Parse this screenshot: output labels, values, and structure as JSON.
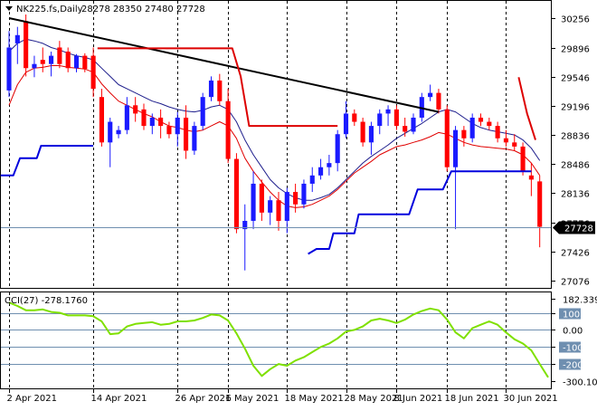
{
  "header": {
    "symbol_label": "NK225.fs,Daily",
    "ohlc_label": "28278 28350 27480 27728"
  },
  "indicator_header": {
    "label": "CCI(27) -278.1760"
  },
  "price_axis": {
    "ticks": [
      "30256",
      "29896",
      "29546",
      "29196",
      "28836",
      "28486",
      "28136",
      "27776",
      "27426",
      "27076"
    ],
    "last_price_label": "27728"
  },
  "cci_axis": {
    "ticks": [
      "182.339",
      "100",
      "0.00",
      "-100",
      "-200",
      "-300.105"
    ]
  },
  "date_axis": {
    "labels": [
      "2 Apr 2021",
      "14 Apr 2021",
      "26 Apr 2021",
      "6 May 2021",
      "18 May 2021",
      "28 May 2021",
      "8 Jun 2021",
      "18 Jun 2021",
      "30 Jun 2021"
    ]
  },
  "colors": {
    "bull": "#1a1aff",
    "bear": "#ff0000",
    "trendline": "#000000",
    "ma_fast": "#e00000",
    "ma_slow": "#1e1e8c",
    "support": "#0000dd",
    "resistance": "#dd0000",
    "cci": "#7fe000",
    "cci_levels": "#6f8fb0",
    "last_price_line": "#6f8fb0"
  },
  "chart_data": [
    {
      "type": "candlestick",
      "ylim": [
        27076,
        30256
      ],
      "candles": [
        {
          "date": "2 Apr 2021",
          "o": 29380,
          "h": 30100,
          "l": 29300,
          "c": 29900
        },
        {
          "date": "",
          "o": 29950,
          "h": 30150,
          "l": 29700,
          "c": 30050
        },
        {
          "date": "",
          "o": 30220,
          "h": 30300,
          "l": 29550,
          "c": 29650
        },
        {
          "date": "",
          "o": 29650,
          "h": 29800,
          "l": 29540,
          "c": 29700
        },
        {
          "date": "",
          "o": 29750,
          "h": 29900,
          "l": 29600,
          "c": 29700
        },
        {
          "date": "",
          "o": 29700,
          "h": 29850,
          "l": 29550,
          "c": 29800
        },
        {
          "date": "",
          "o": 29900,
          "h": 29980,
          "l": 29650,
          "c": 29700
        },
        {
          "date": "",
          "o": 29850,
          "h": 29900,
          "l": 29600,
          "c": 29650
        },
        {
          "date": "",
          "o": 29650,
          "h": 29820,
          "l": 29600,
          "c": 29800
        },
        {
          "date": "",
          "o": 29800,
          "h": 29830,
          "l": 29600,
          "c": 29640
        },
        {
          "date": "14 Apr 2021",
          "o": 29800,
          "h": 29900,
          "l": 29300,
          "c": 29400
        },
        {
          "date": "",
          "o": 29300,
          "h": 29400,
          "l": 28700,
          "c": 28750
        },
        {
          "date": "",
          "o": 28750,
          "h": 29050,
          "l": 28450,
          "c": 29000
        },
        {
          "date": "",
          "o": 28850,
          "h": 28950,
          "l": 28800,
          "c": 28900
        },
        {
          "date": "",
          "o": 28900,
          "h": 29300,
          "l": 28850,
          "c": 29200
        },
        {
          "date": "",
          "o": 29200,
          "h": 29300,
          "l": 29000,
          "c": 29100
        },
        {
          "date": "",
          "o": 29150,
          "h": 29220,
          "l": 28900,
          "c": 28950
        },
        {
          "date": "",
          "o": 28950,
          "h": 29100,
          "l": 28850,
          "c": 29050
        },
        {
          "date": "",
          "o": 29050,
          "h": 29150,
          "l": 28800,
          "c": 28950
        },
        {
          "date": "",
          "o": 28950,
          "h": 29000,
          "l": 28800,
          "c": 28850
        },
        {
          "date": "26 Apr 2021",
          "o": 28850,
          "h": 29120,
          "l": 28700,
          "c": 29050
        },
        {
          "date": "",
          "o": 29050,
          "h": 29200,
          "l": 28550,
          "c": 28650
        },
        {
          "date": "",
          "o": 28650,
          "h": 29000,
          "l": 28600,
          "c": 28950
        },
        {
          "date": "",
          "o": 28950,
          "h": 29350,
          "l": 28900,
          "c": 29300
        },
        {
          "date": "",
          "o": 29300,
          "h": 29550,
          "l": 29250,
          "c": 29500
        },
        {
          "date": "",
          "o": 29500,
          "h": 29580,
          "l": 29200,
          "c": 29250
        },
        {
          "date": "6 May 2021",
          "o": 29250,
          "h": 29400,
          "l": 28500,
          "c": 28550
        },
        {
          "date": "",
          "o": 28550,
          "h": 28620,
          "l": 27650,
          "c": 27700
        },
        {
          "date": "",
          "o": 27700,
          "h": 28000,
          "l": 27200,
          "c": 27800
        },
        {
          "date": "",
          "o": 27800,
          "h": 28400,
          "l": 27700,
          "c": 28250
        },
        {
          "date": "",
          "o": 28250,
          "h": 28300,
          "l": 27800,
          "c": 27900
        },
        {
          "date": "",
          "o": 27900,
          "h": 28100,
          "l": 27750,
          "c": 28050
        },
        {
          "date": "",
          "o": 28050,
          "h": 28150,
          "l": 27680,
          "c": 27800
        },
        {
          "date": "18 May 2021",
          "o": 27800,
          "h": 28200,
          "l": 27650,
          "c": 28150
        },
        {
          "date": "",
          "o": 28150,
          "h": 28250,
          "l": 27900,
          "c": 28000
        },
        {
          "date": "",
          "o": 28000,
          "h": 28300,
          "l": 27950,
          "c": 28250
        },
        {
          "date": "",
          "o": 28250,
          "h": 28450,
          "l": 28150,
          "c": 28350
        },
        {
          "date": "",
          "o": 28350,
          "h": 28550,
          "l": 28300,
          "c": 28450
        },
        {
          "date": "",
          "o": 28450,
          "h": 28600,
          "l": 28350,
          "c": 28500
        },
        {
          "date": "",
          "o": 28500,
          "h": 28900,
          "l": 28400,
          "c": 28850
        },
        {
          "date": "28 May 2021",
          "o": 28850,
          "h": 29250,
          "l": 28800,
          "c": 29100
        },
        {
          "date": "",
          "o": 29100,
          "h": 29150,
          "l": 28950,
          "c": 29000
        },
        {
          "date": "",
          "o": 29000,
          "h": 29050,
          "l": 28700,
          "c": 28750
        },
        {
          "date": "",
          "o": 28750,
          "h": 29000,
          "l": 28600,
          "c": 28950
        },
        {
          "date": "",
          "o": 28950,
          "h": 29150,
          "l": 28850,
          "c": 29100
        },
        {
          "date": "",
          "o": 29100,
          "h": 29200,
          "l": 28950,
          "c": 29150
        },
        {
          "date": "8 Jun 2021",
          "o": 29150,
          "h": 29200,
          "l": 28900,
          "c": 28950
        },
        {
          "date": "",
          "o": 28950,
          "h": 29050,
          "l": 28820,
          "c": 28880
        },
        {
          "date": "",
          "o": 28880,
          "h": 29100,
          "l": 28850,
          "c": 29050
        },
        {
          "date": "",
          "o": 29050,
          "h": 29350,
          "l": 29000,
          "c": 29300
        },
        {
          "date": "",
          "o": 29300,
          "h": 29450,
          "l": 29250,
          "c": 29350
        },
        {
          "date": "",
          "o": 29350,
          "h": 29400,
          "l": 29100,
          "c": 29150
        },
        {
          "date": "18 Jun 2021",
          "o": 29150,
          "h": 29200,
          "l": 28400,
          "c": 28450
        },
        {
          "date": "",
          "o": 28450,
          "h": 28950,
          "l": 27700,
          "c": 28900
        },
        {
          "date": "",
          "o": 28900,
          "h": 28950,
          "l": 28700,
          "c": 28800
        },
        {
          "date": "",
          "o": 28800,
          "h": 29100,
          "l": 28750,
          "c": 29050
        },
        {
          "date": "",
          "o": 29050,
          "h": 29100,
          "l": 28950,
          "c": 29000
        },
        {
          "date": "",
          "o": 29000,
          "h": 29050,
          "l": 28900,
          "c": 28950
        },
        {
          "date": "",
          "o": 28950,
          "h": 29000,
          "l": 28750,
          "c": 28800
        },
        {
          "date": "30 Jun 2021",
          "o": 28800,
          "h": 28900,
          "l": 28700,
          "c": 28750
        },
        {
          "date": "",
          "o": 28750,
          "h": 28850,
          "l": 28650,
          "c": 28700
        },
        {
          "date": "",
          "o": 28700,
          "h": 28750,
          "l": 28350,
          "c": 28400
        },
        {
          "date": "",
          "o": 28350,
          "h": 28500,
          "l": 28100,
          "c": 28300
        },
        {
          "date": "",
          "o": 28278,
          "h": 28350,
          "l": 27480,
          "c": 27728
        }
      ],
      "trendline": [
        [
          0,
          30256
        ],
        [
          51,
          29120
        ]
      ],
      "ma_fast": [
        29200,
        29450,
        29600,
        29650,
        29660,
        29680,
        29680,
        29660,
        29650,
        29640,
        29600,
        29460,
        29350,
        29250,
        29200,
        29150,
        29100,
        29060,
        29000,
        28950,
        28930,
        28900,
        28880,
        28900,
        28950,
        29000,
        28950,
        28800,
        28560,
        28400,
        28270,
        28150,
        28050,
        27980,
        27960,
        27970,
        28000,
        28050,
        28100,
        28180,
        28280,
        28380,
        28450,
        28520,
        28600,
        28650,
        28700,
        28720,
        28750,
        28780,
        28820,
        28870,
        28850,
        28800,
        28750,
        28720,
        28700,
        28690,
        28680,
        28670,
        28650,
        28600,
        28500,
        28350
      ],
      "ma_slow": [
        29850,
        29950,
        30000,
        29980,
        29950,
        29900,
        29870,
        29830,
        29800,
        29780,
        29750,
        29650,
        29550,
        29450,
        29400,
        29350,
        29300,
        29250,
        29220,
        29180,
        29150,
        29130,
        29120,
        29140,
        29180,
        29200,
        29150,
        29000,
        28780,
        28600,
        28450,
        28300,
        28200,
        28130,
        28080,
        28050,
        28050,
        28080,
        28120,
        28200,
        28300,
        28400,
        28500,
        28580,
        28650,
        28720,
        28800,
        28860,
        28920,
        28980,
        29050,
        29120,
        29150,
        29120,
        29050,
        28980,
        28930,
        28900,
        28880,
        28860,
        28840,
        28780,
        28680,
        28530
      ],
      "support_line": [
        [
          -1,
          28350
        ],
        [
          0.5,
          28350
        ],
        [
          1.3,
          28560
        ],
        [
          3.3,
          28560
        ],
        [
          3.8,
          28710
        ],
        [
          10,
          28710
        ]
      ],
      "support_line_2": [
        [
          35.5,
          27400
        ],
        [
          36.5,
          27460
        ],
        [
          38,
          27460
        ],
        [
          38.5,
          27650
        ],
        [
          41,
          27650
        ],
        [
          41.5,
          27880
        ],
        [
          43.5,
          27880
        ],
        [
          44,
          27880
        ],
        [
          47.5,
          27880
        ],
        [
          48.5,
          28180
        ],
        [
          51.5,
          28180
        ],
        [
          52.5,
          28400
        ],
        [
          62,
          28400
        ]
      ],
      "resistance_line": [
        [
          10.5,
          29890
        ],
        [
          26.5,
          29890
        ],
        [
          27.5,
          29550
        ],
        [
          28.5,
          28950
        ],
        [
          39,
          28950
        ]
      ],
      "resistance_line_2": [
        [
          60.5,
          29540
        ],
        [
          61.5,
          29100
        ],
        [
          62.5,
          28780
        ]
      ]
    },
    {
      "type": "line",
      "name": "CCI(27)",
      "ylim": [
        -300.105,
        182.339
      ],
      "levels": [
        100,
        0,
        -100,
        -200
      ],
      "values": [
        160,
        140,
        115,
        115,
        120,
        105,
        100,
        85,
        85,
        85,
        80,
        50,
        -25,
        -20,
        20,
        35,
        40,
        45,
        30,
        35,
        50,
        50,
        55,
        70,
        90,
        85,
        55,
        -20,
        -110,
        -210,
        -270,
        -230,
        -200,
        -210,
        -180,
        -160,
        -130,
        -100,
        -80,
        -50,
        -10,
        0,
        20,
        55,
        65,
        55,
        40,
        60,
        90,
        110,
        125,
        115,
        60,
        -15,
        -50,
        10,
        30,
        50,
        30,
        -15,
        -55,
        -80,
        -120,
        -200,
        -278
      ]
    }
  ]
}
